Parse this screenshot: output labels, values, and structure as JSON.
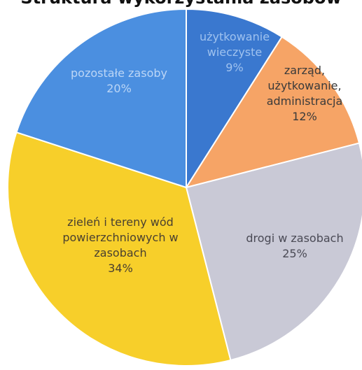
{
  "chart_data": {
    "type": "pie",
    "title": "Struktura wykorzystania zasobów",
    "slices": [
      {
        "label_lines": [
          "użytkowanie",
          "wieczyste"
        ],
        "value": 9,
        "value_label": "9%",
        "color": "#3a78cf",
        "label_color": "#9fc2ef"
      },
      {
        "label_lines": [
          "zarząd,",
          "użytkowanie,",
          "administracja"
        ],
        "value": 12,
        "value_label": "12%",
        "color": "#f6a466",
        "label_color": "#3a3a3a"
      },
      {
        "label_lines": [
          "drogi w zasobach"
        ],
        "value": 25,
        "value_label": "25%",
        "color": "#c9c9d6",
        "label_color": "#4a4a55"
      },
      {
        "label_lines": [
          "zieleń i tereny wód",
          "powierzchniowych w",
          "zasobach"
        ],
        "value": 34,
        "value_label": "34%",
        "color": "#f7cf2a",
        "label_color": "#4a4030"
      },
      {
        "label_lines": [
          "pozostałe zasoby"
        ],
        "value": 20,
        "value_label": "20%",
        "color": "#4b8fe0",
        "label_color": "#bcd6f6"
      }
    ],
    "legend": "none"
  }
}
